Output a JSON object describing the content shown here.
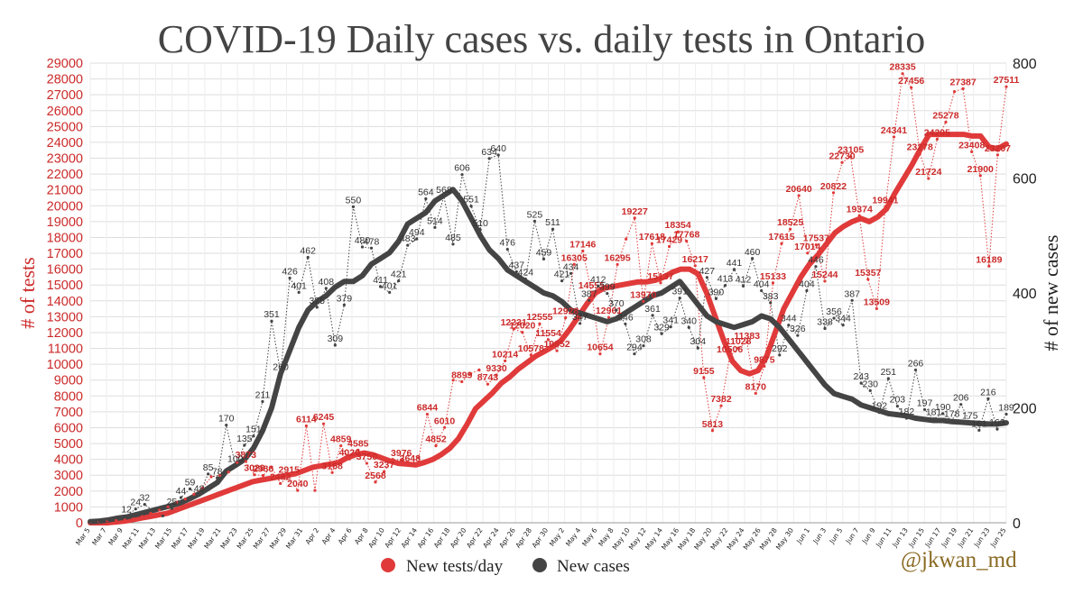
{
  "title": "COVID-19 Daily cases vs. daily tests in Ontario",
  "credit": "@jkwan_md",
  "chart_data": {
    "type": "line",
    "title": "COVID-19 Daily cases vs. daily tests in Ontario",
    "ylabel": "# of tests",
    "y2label": "# of new cases",
    "ylim": [
      0,
      29000
    ],
    "y2lim": [
      0,
      800
    ],
    "y_ticks": [
      0,
      1000,
      2000,
      3000,
      4000,
      5000,
      6000,
      7000,
      8000,
      9000,
      10000,
      11000,
      12000,
      13000,
      14000,
      15000,
      16000,
      17000,
      18000,
      19000,
      20000,
      21000,
      22000,
      23000,
      24000,
      25000,
      26000,
      27000,
      28000,
      29000
    ],
    "y2_ticks": [
      0,
      200,
      400,
      600,
      800
    ],
    "x_tick_labels": [
      "Mar 5",
      "Mar 7",
      "Mar 9",
      "Mar 11",
      "Mar 13",
      "Mar 15",
      "Mar 17",
      "Mar 19",
      "Mar 21",
      "Mar 23",
      "Mar 25",
      "Mar 27",
      "Mar 29",
      "Mar 31",
      "Apr 2",
      "Apr 4",
      "Apr 6",
      "Apr 8",
      "Apr 10",
      "Apr 12",
      "Apr 14",
      "Apr 16",
      "Apr 18",
      "Apr 20",
      "Apr 22",
      "Apr 24",
      "Apr 26",
      "Apr 28",
      "Apr 30",
      "May 2",
      "May 4",
      "May 6",
      "May 8",
      "May 10",
      "May 12",
      "May 14",
      "May 16",
      "May 18",
      "May 20",
      "May 22",
      "May 24",
      "May 26",
      "May 28",
      "May 30",
      "Jun 1",
      "Jun 3",
      "Jun 5",
      "Jun 7",
      "Jun 9",
      "Jun 11",
      "Jun 13",
      "Jun 15",
      "Jun 17",
      "Jun 19",
      "Jun 21",
      "Jun 23",
      "Jun 25"
    ],
    "legend": "bottom",
    "grid": true,
    "series": [
      {
        "name": "New tests/day",
        "color": "#e03a3a",
        "axis": "left",
        "annotated": [
          [
            "Mar 28",
            6114
          ],
          [
            "Mar 29",
            2040
          ],
          [
            "Mar 30",
            6245
          ],
          [
            "Mar 31",
            3168
          ],
          [
            "Apr 1",
            4859
          ],
          [
            "Apr 2",
            4020
          ],
          [
            "Apr 3",
            4585
          ],
          [
            "Apr 4",
            3750
          ],
          [
            "Apr 5",
            2568
          ],
          [
            "Apr 6",
            3237
          ],
          [
            "Apr 8",
            3976
          ],
          [
            "Apr 9",
            3648
          ],
          [
            "Apr 11",
            6844
          ],
          [
            "Apr 12",
            4852
          ],
          [
            "Apr 13",
            6010
          ],
          [
            "Apr 15",
            8899
          ],
          [
            "Apr 18",
            8743
          ],
          [
            "Apr 19",
            9330
          ],
          [
            "Apr 22",
            10578
          ],
          [
            "Apr 23",
            12020
          ],
          [
            "Apr 24",
            11554
          ],
          [
            "Apr 25",
            10852
          ],
          [
            "Apr 25b",
            12555
          ],
          [
            "Apr 29",
            12928
          ],
          [
            "Apr 30",
            16305
          ],
          [
            "May 1",
            17146
          ],
          [
            "May 2",
            14555
          ],
          [
            "May 3",
            10654
          ],
          [
            "May 4",
            12961
          ],
          [
            "May 6",
            16295
          ],
          [
            "May 8",
            19227
          ],
          [
            "May 9",
            13970
          ],
          [
            "May 10",
            17618
          ],
          [
            "May 12",
            15137
          ],
          [
            "May 13",
            17429
          ],
          [
            "May 14",
            18354
          ],
          [
            "May 15",
            17768
          ],
          [
            "May 16",
            16217
          ],
          [
            "May 17",
            9155
          ],
          [
            "May 18",
            5813
          ],
          [
            "May 20",
            7382
          ],
          [
            "May 21",
            10506
          ],
          [
            "May 23",
            11383
          ],
          [
            "May 24",
            8170
          ],
          [
            "May 25",
            9875
          ],
          [
            "May 26",
            15133
          ],
          [
            "May 28",
            17615
          ],
          [
            "May 28b",
            18525
          ],
          [
            "May 29",
            20640
          ],
          [
            "May 30",
            17014
          ],
          [
            "May 31",
            17537
          ],
          [
            "Jun 1",
            15244
          ],
          [
            "Jun 2",
            20822
          ],
          [
            "Jun 3",
            22730
          ],
          [
            "Jun 4",
            23105
          ],
          [
            "Jun 5",
            19374
          ],
          [
            "Jun 6",
            15357
          ],
          [
            "Jun 7",
            13509
          ],
          [
            "Jun 8",
            19941
          ],
          [
            "Jun 10",
            24341
          ],
          [
            "Jun 11",
            28335
          ],
          [
            "Jun 12",
            27456
          ],
          [
            "Jun 13",
            23278
          ],
          [
            "Jun 14",
            21724
          ],
          [
            "Jun 15",
            24205
          ],
          [
            "Jun 16",
            25278
          ],
          [
            "Jun 18",
            27387
          ],
          [
            "Jun 20",
            23408
          ],
          [
            "Jun 21",
            21900
          ],
          [
            "Jun 22",
            16189
          ],
          [
            "Jun 23",
            23207
          ],
          [
            "Jun 24",
            27511
          ]
        ],
        "visible_labels": [
          "3873",
          "3029",
          "2986",
          "2482",
          "2915",
          "2040",
          "6114",
          "6245",
          "3168",
          "4859",
          "4020",
          "4585",
          "3750",
          "2568",
          "3237",
          "3976",
          "3648",
          "6844",
          "4852",
          "6010",
          "8899",
          "9330",
          "8743",
          "10214",
          "12231",
          "12020",
          "10578",
          "12555",
          "11554",
          "10852",
          "12928",
          "16305",
          "17146",
          "14555",
          "10654",
          "12961",
          "16295",
          "19227",
          "13970",
          "17618",
          "15137",
          "17429",
          "18354",
          "17768",
          "16217",
          "9155",
          "5813",
          "7382",
          "10506",
          "11028",
          "11383",
          "8170",
          "9875",
          "15133",
          "17615",
          "18525",
          "20640",
          "17014",
          "17537",
          "15244",
          "20822",
          "22730",
          "23105",
          "19374",
          "15357",
          "13509",
          "19941",
          "24341",
          "28335",
          "27456",
          "23278",
          "21724",
          "24205",
          "25278",
          "27387",
          "23408",
          "21900",
          "16189",
          "23207",
          "27511"
        ],
        "daily": [
          50,
          80,
          120,
          150,
          180,
          250,
          400,
          600,
          800,
          1000,
          1300,
          1500,
          1800,
          2200,
          2900,
          3000,
          3200,
          3800,
          3873,
          3029,
          2986,
          3500,
          2482,
          2915,
          2040,
          6114,
          2040,
          6245,
          3168,
          4859,
          4020,
          4585,
          3750,
          2568,
          3237,
          4000,
          3976,
          3648,
          4100,
          6844,
          4852,
          6010,
          9000,
          8899,
          9400,
          9647,
          8743,
          9330,
          10214,
          12231,
          12020,
          10578,
          12555,
          11554,
          10852,
          12928,
          16305,
          17146,
          14555,
          10654,
          12961,
          16295,
          17900,
          19227,
          13970,
          17618,
          15137,
          17429,
          18354,
          17768,
          16217,
          9155,
          5813,
          7382,
          10506,
          11028,
          11383,
          8170,
          9875,
          15133,
          17615,
          18525,
          20640,
          17014,
          17537,
          15244,
          20822,
          22730,
          23105,
          19374,
          15357,
          13509,
          19941,
          24341,
          28335,
          27456,
          23278,
          21724,
          24205,
          25278,
          27200,
          27387,
          23408,
          21900,
          16189,
          23207,
          27511
        ],
        "avg7": [
          0,
          0,
          0,
          50,
          100,
          200,
          300,
          400,
          500,
          600,
          800,
          1000,
          1200,
          1400,
          1600,
          1800,
          2000,
          2200,
          2400,
          2600,
          2700,
          2800,
          2900,
          3000,
          3100,
          3300,
          3500,
          3600,
          3700,
          3800,
          4100,
          4300,
          4400,
          4300,
          4100,
          3900,
          3750,
          3700,
          3650,
          3800,
          4000,
          4300,
          4700,
          5300,
          6200,
          7200,
          7700,
          8200,
          8800,
          9200,
          9700,
          10100,
          10500,
          10800,
          11100,
          11500,
          12200,
          13000,
          13800,
          14500,
          14800,
          14900,
          15000,
          15100,
          15200,
          15200,
          15300,
          15500,
          15800,
          16000,
          16000,
          15700,
          14500,
          13000,
          11500,
          10200,
          9600,
          9400,
          9600,
          10500,
          12000,
          13500,
          14500,
          15500,
          16300,
          16900,
          17600,
          18300,
          18700,
          19000,
          19200,
          19000,
          19300,
          19800,
          20800,
          21700,
          22600,
          23600,
          24500,
          24500,
          24500,
          24500,
          24500,
          24400,
          24400,
          23700,
          23600,
          23900
        ],
        "legend_label": "New tests/day"
      },
      {
        "name": "New cases",
        "color": "#444444",
        "axis": "right",
        "visible_labels": [
          "170",
          "100",
          "135",
          "151",
          "211",
          "351",
          "260",
          "426",
          "401",
          "462",
          "375",
          "408",
          "309",
          "379",
          "550",
          "480",
          "478",
          "411",
          "401",
          "421",
          "483",
          "494",
          "564",
          "514",
          "568",
          "485",
          "606",
          "551",
          "510",
          "634",
          "640",
          "476",
          "437",
          "424",
          "525",
          "459",
          "511",
          "421",
          "434",
          "347",
          "387",
          "412",
          "399",
          "370",
          "346",
          "294",
          "308",
          "361",
          "329",
          "341",
          "391",
          "340",
          "304",
          "427",
          "390",
          "413",
          "441",
          "412",
          "460",
          "404",
          "383",
          "292",
          "344",
          "326",
          "404",
          "446",
          "338",
          "356",
          "344",
          "387",
          "243",
          "230",
          "192",
          "251",
          "203",
          "182",
          "266",
          "197",
          "181",
          "190",
          "178",
          "206",
          "175",
          "161",
          "216",
          "163",
          "189",
          "12",
          "25",
          "44",
          "59",
          "48",
          "85",
          "78",
          "32",
          "36",
          "24",
          "42",
          "61",
          "21"
        ],
        "daily": [
          2,
          3,
          5,
          8,
          12,
          24,
          32,
          20,
          12,
          25,
          44,
          59,
          48,
          85,
          78,
          170,
          100,
          135,
          151,
          211,
          351,
          260,
          426,
          401,
          462,
          375,
          408,
          309,
          379,
          550,
          480,
          478,
          411,
          401,
          421,
          483,
          494,
          564,
          514,
          568,
          485,
          606,
          551,
          510,
          634,
          640,
          476,
          437,
          424,
          525,
          459,
          511,
          421,
          434,
          347,
          387,
          412,
          399,
          370,
          346,
          294,
          308,
          361,
          329,
          341,
          391,
          340,
          304,
          427,
          390,
          413,
          441,
          412,
          460,
          404,
          383,
          292,
          344,
          326,
          404,
          446,
          338,
          356,
          344,
          387,
          243,
          230,
          192,
          251,
          203,
          182,
          266,
          197,
          181,
          190,
          178,
          206,
          175,
          161,
          216,
          163,
          189
        ],
        "avg7": [
          2,
          3,
          5,
          8,
          10,
          14,
          18,
          22,
          26,
          30,
          35,
          42,
          50,
          60,
          70,
          90,
          100,
          110,
          130,
          160,
          200,
          260,
          300,
          340,
          370,
          385,
          395,
          410,
          420,
          420,
          430,
          450,
          460,
          470,
          490,
          520,
          530,
          540,
          560,
          570,
          580,
          560,
          530,
          500,
          475,
          460,
          440,
          430,
          420,
          410,
          400,
          395,
          385,
          370,
          365,
          360,
          355,
          350,
          355,
          365,
          375,
          385,
          395,
          400,
          410,
          420,
          400,
          380,
          360,
          350,
          345,
          340,
          345,
          350,
          360,
          355,
          340,
          320,
          300,
          280,
          260,
          240,
          225,
          220,
          215,
          205,
          200,
          195,
          190,
          188,
          186,
          182,
          180,
          178,
          178,
          176,
          175,
          174,
          173,
          172,
          172,
          174
        ]
      }
    ]
  },
  "legend": {
    "tests_label": "New tests/day",
    "cases_label": "New cases",
    "tests_color": "#e03a3a",
    "cases_color": "#444444"
  }
}
